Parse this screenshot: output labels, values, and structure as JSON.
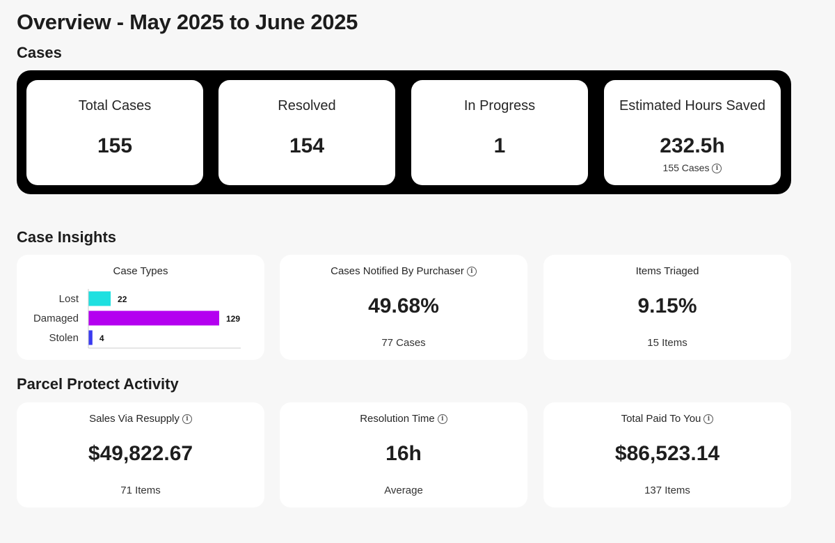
{
  "page_title": "Overview - May 2025 to June 2025",
  "sections": {
    "cases": "Cases",
    "insights": "Case Insights",
    "activity": "Parcel Protect Activity"
  },
  "cases": {
    "total": {
      "label": "Total Cases",
      "value": "155"
    },
    "resolved": {
      "label": "Resolved",
      "value": "154"
    },
    "in_progress": {
      "label": "In Progress",
      "value": "1"
    },
    "hours_saved": {
      "label": "Estimated Hours Saved",
      "value": "232.5h",
      "sub": "155 Cases"
    }
  },
  "insights": {
    "case_types": {
      "label": "Case Types"
    },
    "purchaser": {
      "label": "Cases Notified By Purchaser",
      "value": "49.68%",
      "sub": "77 Cases"
    },
    "triaged": {
      "label": "Items Triaged",
      "value": "9.15%",
      "sub": "15 Items"
    }
  },
  "activity": {
    "sales": {
      "label": "Sales Via Resupply",
      "value": "$49,822.67",
      "sub": "71 Items"
    },
    "resolution": {
      "label": "Resolution Time",
      "value": "16h",
      "sub": "Average"
    },
    "paid": {
      "label": "Total Paid To You",
      "value": "$86,523.14",
      "sub": "137 Items"
    }
  },
  "icons": {
    "info": "info-icon"
  },
  "chart_data": {
    "type": "bar",
    "orientation": "horizontal",
    "title": "Case Types",
    "categories": [
      "Lost",
      "Damaged",
      "Stolen"
    ],
    "values": [
      22,
      129,
      4
    ],
    "colors": [
      "#1ee0e0",
      "#b400f0",
      "#3b3bf0"
    ],
    "xlim": [
      0,
      129
    ]
  }
}
